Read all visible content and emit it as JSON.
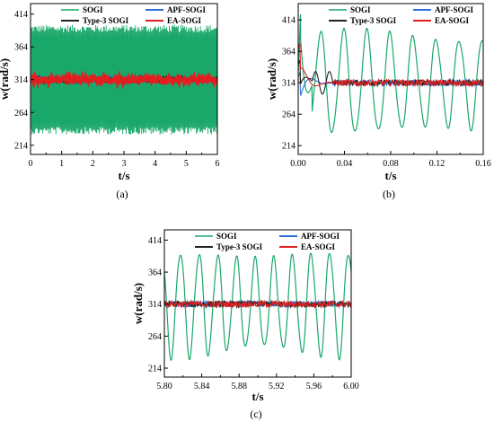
{
  "colors": {
    "SOGI": "#1aa86a",
    "APF-SOGI": "#2f6fd6",
    "Type-3 SOGI": "#222222",
    "EA-SOGI": "#e02020",
    "axis": "#000000"
  },
  "chart_data": [
    {
      "id": "a",
      "type": "line",
      "caption": "(a)",
      "xlabel": "t/s",
      "ylabel": "w(rad/s)",
      "xlim": [
        0,
        6
      ],
      "ylim": [
        200,
        430
      ],
      "xticks": [
        0,
        1,
        2,
        3,
        4,
        5,
        6
      ],
      "xtick_labels": [
        "0",
        "1",
        "2",
        "3",
        "4",
        "5",
        "6"
      ],
      "yticks": [
        214,
        264,
        314,
        364,
        414
      ],
      "ytick_labels": [
        "214",
        "264",
        "314",
        "364",
        "414"
      ],
      "grid": false,
      "legend": [
        "SOGI",
        "APF-SOGI",
        "Type-3 SOGI",
        "EA-SOGI"
      ],
      "legend_position": "top",
      "series": [
        {
          "name": "SOGI",
          "kind": "oscillation",
          "center": 314,
          "amplitude": 82,
          "period": 0.02
        },
        {
          "name": "APF-SOGI",
          "kind": "band",
          "center": 314,
          "amplitude": 5
        },
        {
          "name": "Type-3 SOGI",
          "kind": "band",
          "center": 314,
          "amplitude": 5
        },
        {
          "name": "EA-SOGI",
          "kind": "band",
          "center": 314,
          "amplitude": 5
        }
      ]
    },
    {
      "id": "b",
      "type": "line",
      "caption": "(b)",
      "xlabel": "t/s",
      "ylabel": "w(rad/s)",
      "xlim": [
        0,
        0.16
      ],
      "ylim": [
        200,
        440
      ],
      "xticks": [
        0,
        0.04,
        0.08,
        0.12,
        0.16
      ],
      "xtick_labels": [
        "0.00",
        "0.04",
        "0.08",
        "0.12",
        "0.16"
      ],
      "yticks": [
        214,
        264,
        314,
        364,
        414
      ],
      "ytick_labels": [
        "214",
        "264",
        "314",
        "364",
        "414"
      ],
      "grid": false,
      "legend": [
        "SOGI",
        "APF-SOGI",
        "Type-3 SOGI",
        "EA-SOGI"
      ],
      "legend_position": "top",
      "series": [
        {
          "name": "SOGI",
          "kind": "oscillation",
          "center": 314,
          "amplitude": 82,
          "period": 0.02,
          "transient": true
        },
        {
          "name": "APF-SOGI",
          "kind": "transient",
          "center": 314,
          "amplitude": 5
        },
        {
          "name": "Type-3 SOGI",
          "kind": "transient",
          "center": 314,
          "amplitude": 5
        },
        {
          "name": "EA-SOGI",
          "kind": "transient",
          "center": 314,
          "amplitude": 5
        }
      ]
    },
    {
      "id": "c",
      "type": "line",
      "caption": "(c)",
      "xlabel": "t/s",
      "ylabel": "w(rad/s)",
      "xlim": [
        5.8,
        6.0
      ],
      "ylim": [
        200,
        430
      ],
      "xticks": [
        5.8,
        5.84,
        5.88,
        5.92,
        5.96,
        6.0
      ],
      "xtick_labels": [
        "5.80",
        "5.84",
        "5.88",
        "5.92",
        "5.96",
        "6.00"
      ],
      "yticks": [
        214,
        264,
        314,
        364,
        414
      ],
      "ytick_labels": [
        "214",
        "264",
        "314",
        "364",
        "414"
      ],
      "grid": false,
      "legend": [
        "SOGI",
        "APF-SOGI",
        "Type-3 SOGI",
        "EA-SOGI"
      ],
      "legend_position": "top",
      "series": [
        {
          "name": "SOGI",
          "kind": "oscillation",
          "center": 314,
          "amplitude": 82,
          "period": 0.02
        },
        {
          "name": "APF-SOGI",
          "kind": "band",
          "center": 314,
          "amplitude": 5
        },
        {
          "name": "Type-3 SOGI",
          "kind": "band",
          "center": 314,
          "amplitude": 5
        },
        {
          "name": "EA-SOGI",
          "kind": "band",
          "center": 314,
          "amplitude": 5
        }
      ]
    }
  ]
}
